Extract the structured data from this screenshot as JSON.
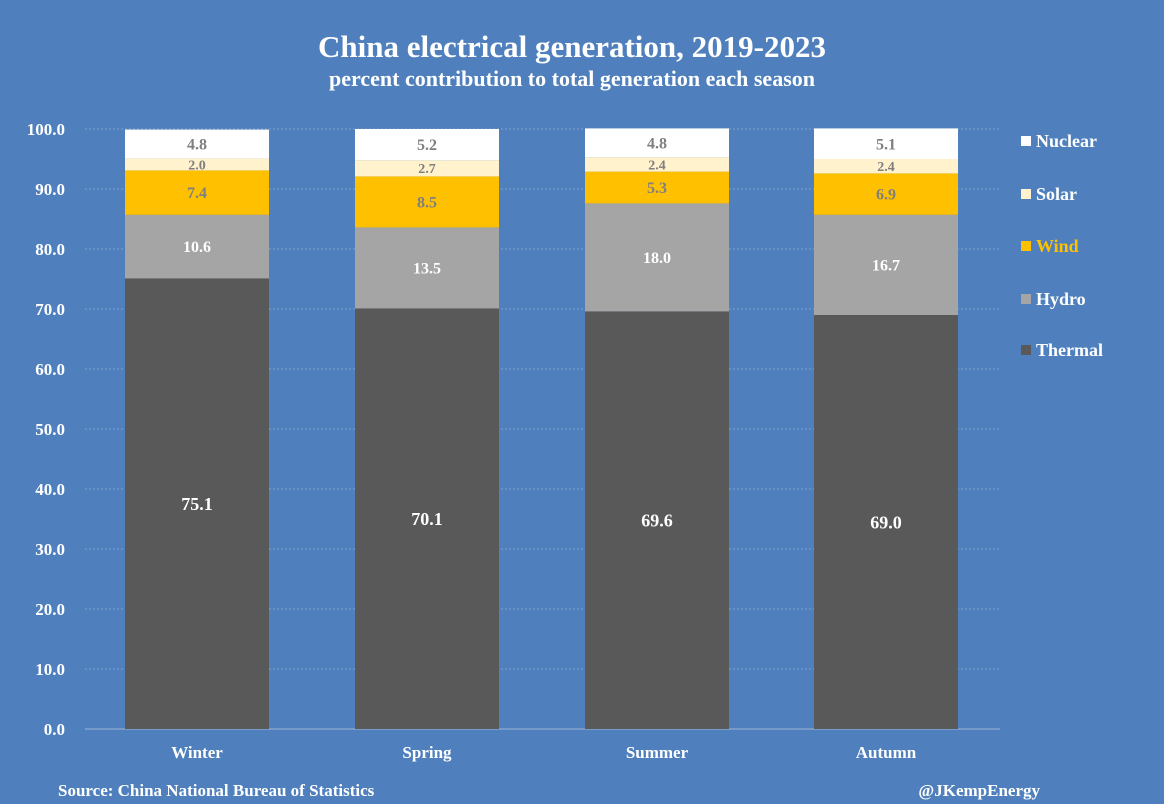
{
  "chart_data": {
    "type": "bar",
    "stacked": true,
    "title": "China electrical generation, 2019-2023",
    "subtitle": "percent contribution to total generation each season",
    "categories": [
      "Winter",
      "Spring",
      "Summer",
      "Autumn"
    ],
    "ylim": [
      0,
      100
    ],
    "yticks": [
      "0.0",
      "10.0",
      "20.0",
      "30.0",
      "40.0",
      "50.0",
      "60.0",
      "70.0",
      "80.0",
      "90.0",
      "100.0"
    ],
    "grid": true,
    "legend_position": "right",
    "series": [
      {
        "name": "Thermal",
        "color": "#595959",
        "label_color": "#ffffff",
        "legend_text_color": "#ffffff",
        "values": [
          75.1,
          70.1,
          69.6,
          69.0
        ],
        "labels": [
          "75.1",
          "70.1",
          "69.6",
          "69.0"
        ]
      },
      {
        "name": "Hydro",
        "color": "#a5a5a5",
        "label_color": "#ffffff",
        "legend_text_color": "#ffffff",
        "values": [
          10.6,
          13.5,
          18.0,
          16.7
        ],
        "labels": [
          "10.6",
          "13.5",
          "18.0",
          "16.7"
        ]
      },
      {
        "name": "Wind",
        "color": "#ffc000",
        "label_color": "#7f7f7f",
        "legend_text_color": "#ffc000",
        "values": [
          7.4,
          8.5,
          5.3,
          6.9
        ],
        "labels": [
          "7.4",
          "8.5",
          "5.3",
          "6.9"
        ]
      },
      {
        "name": "Solar",
        "color": "#fff2cc",
        "label_color": "#7f7f7f",
        "legend_text_color": "#ffffff",
        "values": [
          2.0,
          2.7,
          2.4,
          2.4
        ],
        "labels": [
          "2.0",
          "2.7",
          "2.4",
          "2.4"
        ]
      },
      {
        "name": "Nuclear",
        "color": "#ffffff",
        "label_color": "#7f7f7f",
        "legend_text_color": "#ffffff",
        "values": [
          4.8,
          5.2,
          4.8,
          5.1
        ],
        "labels": [
          "4.8",
          "5.2",
          "4.8",
          "5.1"
        ]
      }
    ]
  },
  "footer": {
    "source": "Source: China National Bureau of Statistics",
    "credit": "@JKempEnergy"
  }
}
